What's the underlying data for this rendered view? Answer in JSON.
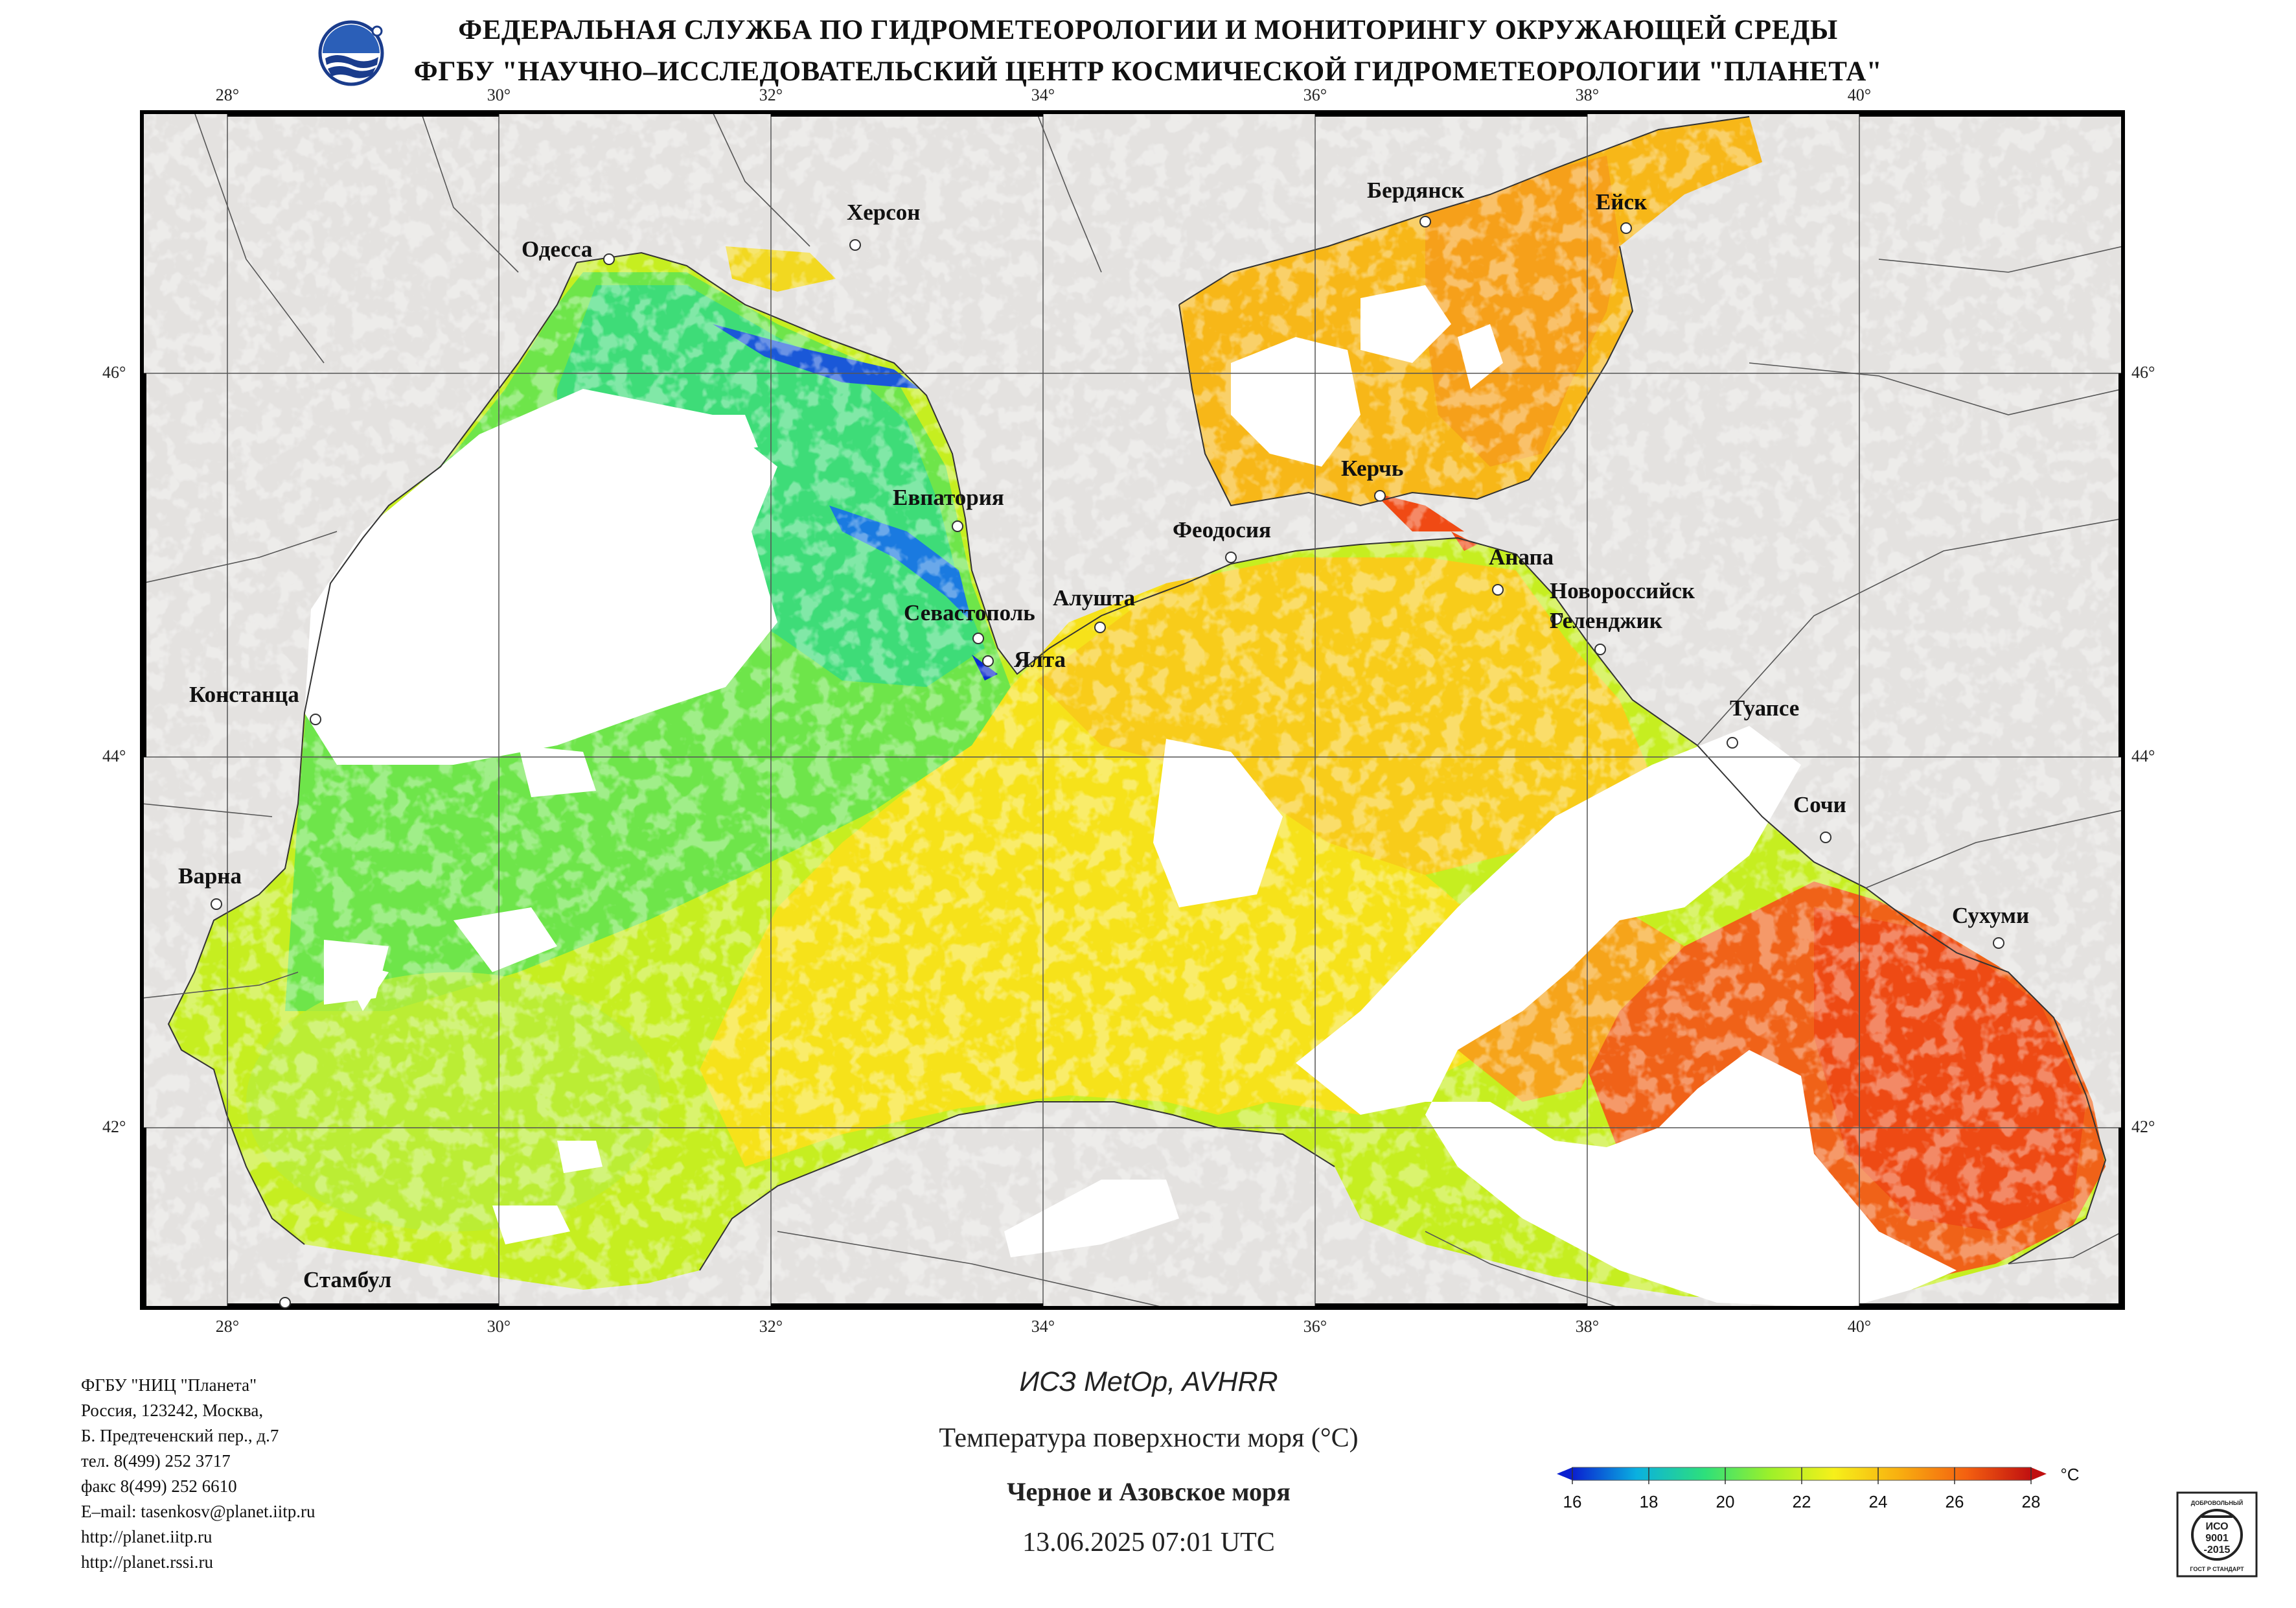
{
  "header": {
    "line1": "ФЕДЕРАЛЬНАЯ СЛУЖБА ПО ГИДРОМЕТЕОРОЛОГИИ И МОНИТОРИНГУ ОКРУЖАЮЩЕЙ СРЕДЫ",
    "line2": "ФГБУ \"НАУЧНО–ИССЛЕДОВАТЕЛЬСКИЙ ЦЕНТР КОСМИЧЕСКОЙ ГИДРОМЕТЕОРОЛОГИИ \"ПЛАНЕТА\""
  },
  "map": {
    "lon_labels": [
      "28°",
      "30°",
      "32°",
      "34°",
      "36°",
      "38°",
      "40°"
    ],
    "lat_labels": [
      "46°",
      "44°",
      "42°"
    ],
    "cities": [
      "Одесса",
      "Херсон",
      "Бердянск",
      "Ейск",
      "Керчь",
      "Евпатория",
      "Феодосия",
      "Анапа",
      "Новороссийск",
      "Геленджик",
      "Севастополь",
      "Алушта",
      "Ялта",
      "Констанца",
      "Туапсе",
      "Сочи",
      "Варна",
      "Сухуми",
      "Стамбул"
    ]
  },
  "contact": [
    "ФГБУ \"НИЦ \"Планета\"",
    "Россия, 123242, Москва,",
    "Б. Предтеченский пер., д.7",
    "тел. 8(499) 252 3717",
    "факс 8(499) 252 6610",
    "E–mail: tasenkosv@planet.iitp.ru",
    "http://planet.iitp.ru",
    "http://planet.rssi.ru"
  ],
  "caption": {
    "satellite": "ИСЗ MetOp, AVHRR",
    "parameter": "Температура поверхности моря (°C)",
    "region": "Черное и Азовское моря",
    "datetime": "13.06.2025 07:01 UTC"
  },
  "colorbar": {
    "unit": "°C",
    "ticks": [
      "16",
      "18",
      "20",
      "22",
      "24",
      "26",
      "28"
    ],
    "colors": [
      "#0a1fd0",
      "#0ab0e0",
      "#2ee07a",
      "#9cf02a",
      "#f6f01a",
      "#f8b010",
      "#f46010",
      "#c01010"
    ]
  },
  "iso": {
    "top": "ДОБРОВОЛЬНЫЙ",
    "mid1": "ИСО",
    "mid2": "9001",
    "mid3": "-2015",
    "bottom": "ГОСТ Р СТАНДАРТ"
  }
}
